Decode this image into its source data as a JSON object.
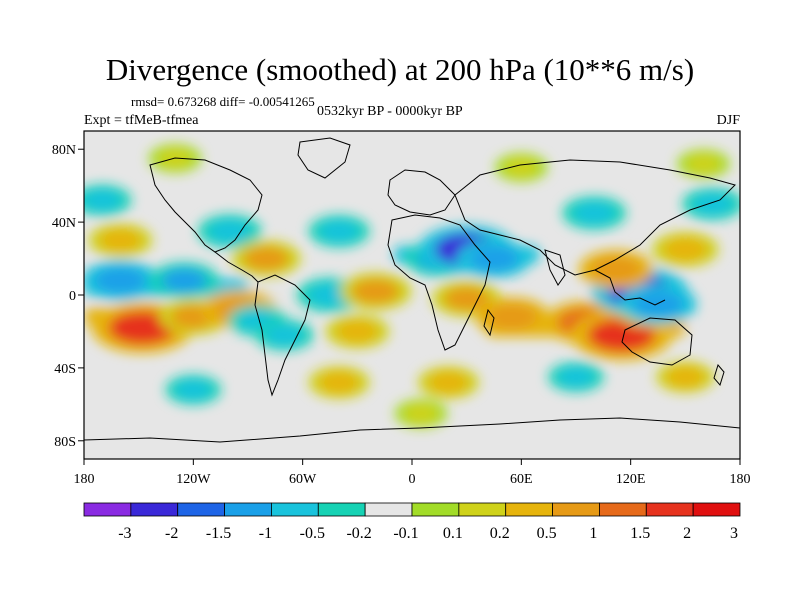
{
  "figure": {
    "title": "Divergence (smoothed) at 200 hPa (10**6 m/s)",
    "stats": "rmsd= 0.673268 diff= -0.00541265",
    "experiment": "Expt = tfMeB-tfmea",
    "period": "0532kyr BP - 0000kyr BP",
    "season": "DJF"
  },
  "map": {
    "projection": "cylindrical equidistant",
    "lon_range": [
      -180,
      180
    ],
    "lat_range": [
      -90,
      90
    ],
    "lat_ticks": [
      {
        "value": 80,
        "label": "80N"
      },
      {
        "value": 40,
        "label": "40N"
      },
      {
        "value": 0,
        "label": "0"
      },
      {
        "value": -40,
        "label": "40S"
      },
      {
        "value": -80,
        "label": "80S"
      }
    ],
    "lon_ticks": [
      {
        "value": -180,
        "label": "180"
      },
      {
        "value": -120,
        "label": "120W"
      },
      {
        "value": -60,
        "label": "60W"
      },
      {
        "value": 0,
        "label": "0"
      },
      {
        "value": 60,
        "label": "60E"
      },
      {
        "value": 120,
        "label": "120E"
      },
      {
        "value": 180,
        "label": "180"
      }
    ]
  },
  "colorbar": {
    "colors": [
      "#8a2be2",
      "#3a28d8",
      "#1e64e6",
      "#1aa0e8",
      "#19c3dc",
      "#16d2b4",
      "#e6e6e6",
      "#a2dc28",
      "#cfd21a",
      "#e6b40c",
      "#e69a16",
      "#e66a1a",
      "#e6321e",
      "#e00f0f"
    ],
    "labels": [
      "-3",
      "-2",
      "-1.5",
      "-1",
      "-0.5",
      "-0.2",
      "-0.1",
      "0.1",
      "0.2",
      "0.5",
      "1",
      "1.5",
      "2",
      "3"
    ]
  },
  "chart_data": {
    "type": "heatmap",
    "title": "Divergence (smoothed) at 200 hPa (10**6 m/s)",
    "units": "10**6 m/s",
    "levels": [
      -3,
      -2,
      -1.5,
      -1,
      -0.5,
      -0.2,
      -0.1,
      0.1,
      0.2,
      0.5,
      1,
      1.5,
      2,
      3
    ],
    "blobs": [
      {
        "lon": -148,
        "lat": -18,
        "value": 2.2
      },
      {
        "lon": -120,
        "lat": -12,
        "value": 1.0
      },
      {
        "lon": -160,
        "lat": 8,
        "value": -1.3
      },
      {
        "lon": -125,
        "lat": 8,
        "value": -1.0
      },
      {
        "lon": -95,
        "lat": -8,
        "value": 1.2
      },
      {
        "lon": -85,
        "lat": -14,
        "value": -0.6
      },
      {
        "lon": -70,
        "lat": -22,
        "value": -0.6
      },
      {
        "lon": -45,
        "lat": 0,
        "value": -0.9
      },
      {
        "lon": -30,
        "lat": -20,
        "value": 0.8
      },
      {
        "lon": -20,
        "lat": 2,
        "value": 1.1
      },
      {
        "lon": 15,
        "lat": 20,
        "value": -1.0
      },
      {
        "lon": 30,
        "lat": 25,
        "value": -2.0
      },
      {
        "lon": 45,
        "lat": 20,
        "value": -1.2
      },
      {
        "lon": 30,
        "lat": -2,
        "value": 1.0
      },
      {
        "lon": 55,
        "lat": -12,
        "value": 1.2
      },
      {
        "lon": 95,
        "lat": -15,
        "value": 1.5
      },
      {
        "lon": 115,
        "lat": -22,
        "value": 2.2
      },
      {
        "lon": 130,
        "lat": -8,
        "value": 0.9
      },
      {
        "lon": 125,
        "lat": 2,
        "value": -2.0
      },
      {
        "lon": 135,
        "lat": -5,
        "value": -1.3
      },
      {
        "lon": 112,
        "lat": 14,
        "value": 1.2
      },
      {
        "lon": 150,
        "lat": 25,
        "value": 0.9
      },
      {
        "lon": -160,
        "lat": 30,
        "value": 0.8
      },
      {
        "lon": -170,
        "lat": 52,
        "value": -0.6
      },
      {
        "lon": -100,
        "lat": 35,
        "value": -0.8
      },
      {
        "lon": -80,
        "lat": 20,
        "value": 1.0
      },
      {
        "lon": -40,
        "lat": 35,
        "value": -0.7
      },
      {
        "lon": 100,
        "lat": 45,
        "value": -0.8
      },
      {
        "lon": 165,
        "lat": 50,
        "value": -0.7
      },
      {
        "lon": -40,
        "lat": -48,
        "value": 0.7
      },
      {
        "lon": -120,
        "lat": -52,
        "value": -0.5
      },
      {
        "lon": 20,
        "lat": -48,
        "value": 0.7
      },
      {
        "lon": 90,
        "lat": -45,
        "value": -0.5
      },
      {
        "lon": 150,
        "lat": -45,
        "value": 0.6
      },
      {
        "lon": 5,
        "lat": -65,
        "value": 0.4
      },
      {
        "lon": -130,
        "lat": 75,
        "value": 0.4
      },
      {
        "lon": 60,
        "lat": 70,
        "value": 0.4
      },
      {
        "lon": 160,
        "lat": 72,
        "value": 0.4
      }
    ],
    "bands": [
      {
        "lat": 4,
        "value": -0.7,
        "from_lon": -180,
        "to_lon": -90
      },
      {
        "lat": -12,
        "value": 0.6,
        "from_lon": -180,
        "to_lon": -100
      },
      {
        "lat": -18,
        "value": 0.6,
        "from_lon": 40,
        "to_lon": 150
      },
      {
        "lat": 22,
        "value": -0.7,
        "from_lon": -10,
        "to_lon": 70
      }
    ]
  }
}
